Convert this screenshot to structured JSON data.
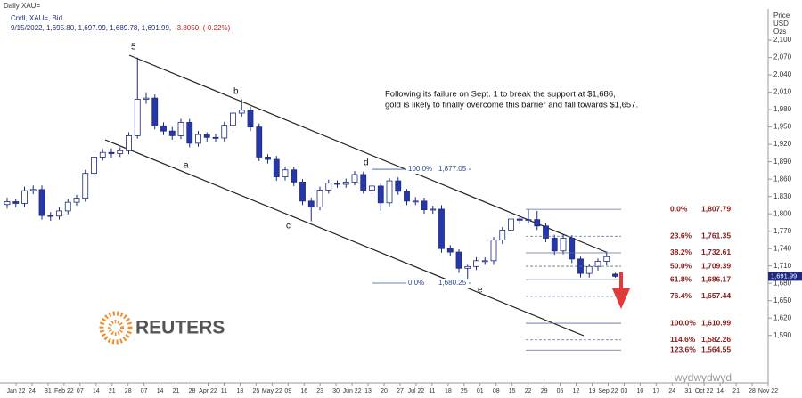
{
  "chart_data": {
    "type": "candlestick",
    "title": "Daily XAU=",
    "series_label": "Cndl, XAU=, Bid",
    "ohlc_text": "9/15/2022, 1,695.80, 1,697.99, 1,689.78, 1,691.99,",
    "change_text": "-3.8050, (-0.22%)",
    "y_axis_label": [
      "Price",
      "USD",
      "Ozs"
    ],
    "annotation_lines": [
      "Following its failure on Sept. 1 to break the support at $1,686,",
      "gold is likely to finally overcome this barrier and fall towards $1,657."
    ],
    "wave_labels": [
      "5",
      "a",
      "b",
      "c",
      "d",
      "e"
    ],
    "logo_text": "REUTERS",
    "watermark": "wydwydwyd",
    "up_color": "#ffffff",
    "down_color": "#2637a8",
    "outline_color": "#1c2a80",
    "fib_color": "#8b1a1a",
    "ylim": [
      1508,
      2154
    ],
    "yticks": [
      {
        "value": 2100,
        "label": "2,100"
      },
      {
        "value": 2070,
        "label": "2,070"
      },
      {
        "value": 2040,
        "label": "2,040"
      },
      {
        "value": 2010,
        "label": "2,010"
      },
      {
        "value": 1980,
        "label": "1,980"
      },
      {
        "value": 1950,
        "label": "1,950"
      },
      {
        "value": 1920,
        "label": "1,920"
      },
      {
        "value": 1890,
        "label": "1,890"
      },
      {
        "value": 1860,
        "label": "1,860"
      },
      {
        "value": 1830,
        "label": "1,830"
      },
      {
        "value": 1800,
        "label": "1,800"
      },
      {
        "value": 1770,
        "label": "1,770"
      },
      {
        "value": 1740,
        "label": "1,740"
      },
      {
        "value": 1710,
        "label": "1,710"
      },
      {
        "value": 1680,
        "label": "1,680"
      },
      {
        "value": 1650,
        "label": "1,650"
      },
      {
        "value": 1620,
        "label": "1,620"
      },
      {
        "value": 1590,
        "label": "1,590"
      }
    ],
    "xtick_labels": [
      "Jan 22",
      "24",
      "31",
      "Feb 22",
      "07",
      "14",
      "21",
      "28",
      "07",
      "14",
      "21",
      "28",
      "Apr 22",
      "11",
      "18",
      "25",
      "May 22",
      "09",
      "16",
      "23",
      "30",
      "Jun 22",
      "13",
      "20",
      "27",
      "Jul 22",
      "11",
      "18",
      "25",
      "01",
      "08",
      "15",
      "22",
      "29",
      "05",
      "12",
      "19",
      "Sep 22",
      "03",
      "10",
      "17",
      "24",
      "31",
      "Oct 22",
      "14",
      "21",
      "28",
      "Nov 22"
    ],
    "x": [
      "2022-01-13",
      "2022-01-17",
      "2022-01-20",
      "2022-01-24",
      "2022-01-27",
      "2022-01-31",
      "2022-02-03",
      "2022-02-07",
      "2022-02-10",
      "2022-02-14",
      "2022-02-17",
      "2022-02-21",
      "2022-02-24",
      "2022-02-28",
      "2022-03-03",
      "2022-03-07",
      "2022-03-10",
      "2022-03-14",
      "2022-03-17",
      "2022-03-21",
      "2022-03-24",
      "2022-03-28",
      "2022-03-31",
      "2022-04-04",
      "2022-04-07",
      "2022-04-11",
      "2022-04-14",
      "2022-04-18",
      "2022-04-21",
      "2022-04-25",
      "2022-04-28",
      "2022-05-02",
      "2022-05-05",
      "2022-05-09",
      "2022-05-12",
      "2022-05-16",
      "2022-05-19",
      "2022-05-23",
      "2022-05-26",
      "2022-05-30",
      "2022-06-02",
      "2022-06-06",
      "2022-06-09",
      "2022-06-13",
      "2022-06-16",
      "2022-06-20",
      "2022-06-23",
      "2022-06-27",
      "2022-06-30",
      "2022-07-04",
      "2022-07-07",
      "2022-07-11",
      "2022-07-14",
      "2022-07-18",
      "2022-07-21",
      "2022-07-25",
      "2022-07-28",
      "2022-08-01",
      "2022-08-04",
      "2022-08-08",
      "2022-08-11",
      "2022-08-15",
      "2022-08-18",
      "2022-08-22",
      "2022-08-25",
      "2022-08-29",
      "2022-09-01",
      "2022-09-05",
      "2022-09-08",
      "2022-09-12",
      "2022-09-15"
    ],
    "open": [
      1816,
      1821,
      1818,
      1840,
      1842,
      1797,
      1796,
      1805,
      1820,
      1827,
      1870,
      1898,
      1906,
      1904,
      1909,
      1935,
      1998,
      2000,
      1952,
      1943,
      1935,
      1958,
      1922,
      1937,
      1932,
      1931,
      1953,
      1974,
      1979,
      1950,
      1898,
      1894,
      1864,
      1876,
      1855,
      1822,
      1812,
      1841,
      1853,
      1851,
      1855,
      1868,
      1841,
      1848,
      1819,
      1857,
      1839,
      1822,
      1822,
      1807,
      1808,
      1740,
      1734,
      1706,
      1709,
      1719,
      1719,
      1755,
      1772,
      1791,
      1789,
      1790,
      1779,
      1758,
      1736,
      1758,
      1722,
      1697,
      1709,
      1718,
      1695.8
    ],
    "high": [
      1828,
      1825,
      1847,
      1849,
      1849,
      1803,
      1811,
      1826,
      1833,
      1876,
      1904,
      1912,
      1913,
      1915,
      1941,
      2070,
      2010,
      2006,
      1958,
      1950,
      1964,
      1964,
      1943,
      1941,
      1938,
      1959,
      1980,
      1998,
      1985,
      1956,
      1903,
      1900,
      1882,
      1881,
      1860,
      1828,
      1847,
      1859,
      1858,
      1861,
      1874,
      1873,
      1877,
      1853,
      1862,
      1863,
      1843,
      1829,
      1828,
      1814,
      1815,
      1746,
      1739,
      1712,
      1725,
      1725,
      1760,
      1777,
      1797,
      1796,
      1807.79,
      1805,
      1784,
      1764,
      1764,
      1763,
      1726,
      1714,
      1723,
      1735,
      1697.99
    ],
    "low": [
      1809,
      1811,
      1812,
      1834,
      1790,
      1788,
      1790,
      1799,
      1814,
      1821,
      1863,
      1892,
      1897,
      1898,
      1903,
      1930,
      1990,
      1946,
      1936,
      1928,
      1929,
      1915,
      1916,
      1925,
      1924,
      1925,
      1947,
      1968,
      1943,
      1891,
      1887,
      1857,
      1858,
      1848,
      1815,
      1787,
      1806,
      1835,
      1845,
      1845,
      1849,
      1835,
      1834,
      1805,
      1813,
      1833,
      1815,
      1815,
      1800,
      1800,
      1733,
      1727,
      1698,
      1680.25,
      1703,
      1712,
      1712,
      1748,
      1765,
      1782,
      1783,
      1772,
      1751,
      1729,
      1730,
      1715,
      1690,
      1690,
      1702,
      1711,
      1689.78
    ],
    "close": [
      1821,
      1818,
      1840,
      1842,
      1797,
      1796,
      1805,
      1820,
      1827,
      1870,
      1898,
      1906,
      1904,
      1909,
      1935,
      1998,
      2000,
      1952,
      1943,
      1935,
      1958,
      1922,
      1937,
      1932,
      1931,
      1953,
      1974,
      1979,
      1950,
      1898,
      1894,
      1864,
      1876,
      1855,
      1822,
      1812,
      1841,
      1853,
      1851,
      1855,
      1868,
      1841,
      1848,
      1819,
      1857,
      1839,
      1822,
      1822,
      1807,
      1808,
      1740,
      1734,
      1706,
      1709,
      1719,
      1719,
      1755,
      1772,
      1791,
      1789,
      1790,
      1779,
      1758,
      1736,
      1758,
      1722,
      1697,
      1709,
      1718,
      1726,
      1691.99
    ],
    "last_price": {
      "value": 1691.99,
      "label": "1,691.99"
    },
    "fib_levels": [
      {
        "ratio": "0.0%",
        "price": {
          "value": 1807.79,
          "label": "1,807.79"
        }
      },
      {
        "ratio": "23.6%",
        "price": {
          "value": 1761.35,
          "label": "1,761.35"
        }
      },
      {
        "ratio": "38.2%",
        "price": {
          "value": 1732.61,
          "label": "1,732.61"
        }
      },
      {
        "ratio": "50.0%",
        "price": {
          "value": 1709.39,
          "label": "1,709.39"
        }
      },
      {
        "ratio": "61.8%",
        "price": {
          "value": 1686.17,
          "label": "1,686.17"
        }
      },
      {
        "ratio": "76.4%",
        "price": {
          "value": 1657.44,
          "label": "1,657.44"
        }
      },
      {
        "ratio": "100.0%",
        "price": {
          "value": 1610.99,
          "label": "1,610.99"
        }
      },
      {
        "ratio": "114.6%",
        "price": {
          "value": 1582.26,
          "label": "1,582.26"
        }
      },
      {
        "ratio": "123.6%",
        "price": {
          "value": 1564.55,
          "label": "1,564.55"
        }
      }
    ],
    "left_fib_levels": [
      {
        "ratio": "100.0%",
        "price": {
          "value": 1877.05,
          "label": "1,877.05"
        }
      },
      {
        "ratio": "0.0%",
        "price": {
          "value": 1680.25,
          "label": "1,680.25"
        }
      }
    ]
  }
}
